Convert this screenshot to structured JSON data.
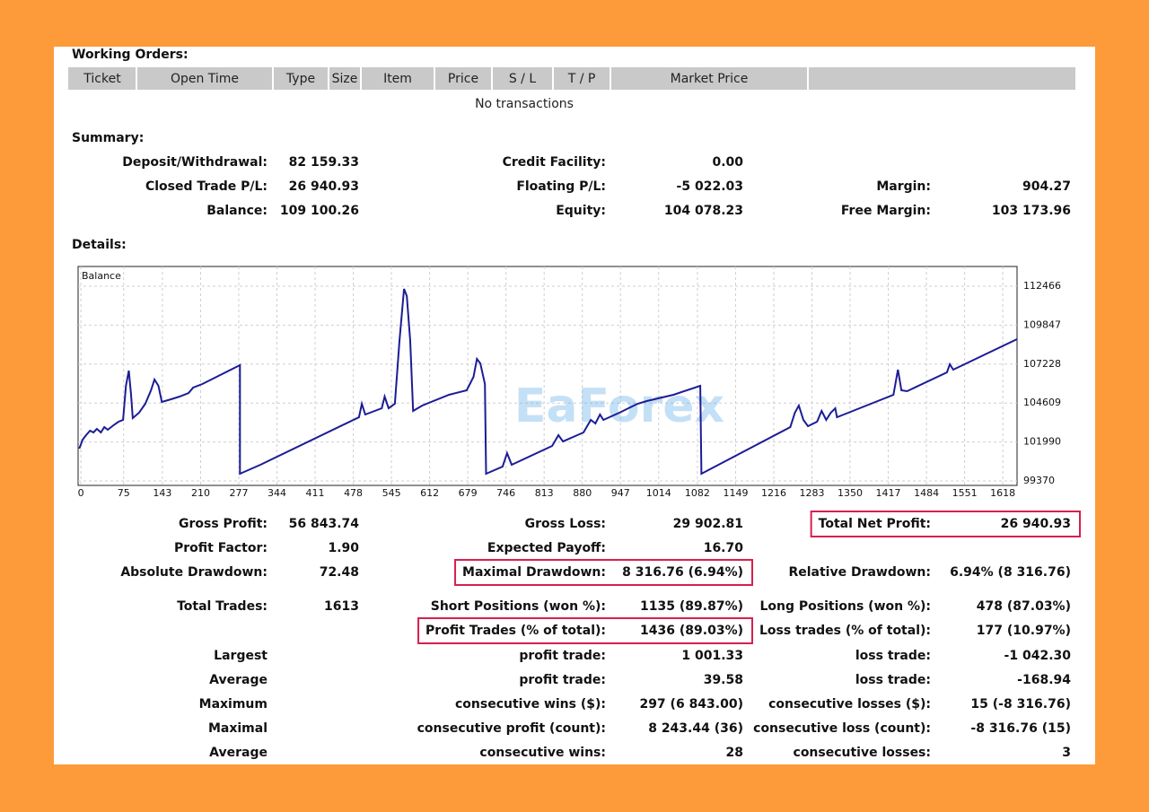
{
  "working_orders": {
    "title": "Working Orders:",
    "columns": [
      "Ticket",
      "Open Time",
      "Type",
      "Size",
      "Item",
      "Price",
      "S / L",
      "T / P",
      "Market Price"
    ],
    "empty_message": "No transactions"
  },
  "summary": {
    "title": "Summary:",
    "rows": [
      [
        {
          "label": "Deposit/Withdrawal:",
          "value": "82 159.33"
        },
        {
          "label": "Credit Facility:",
          "value": "0.00"
        }
      ],
      [
        {
          "label": "Closed Trade P/L:",
          "value": "26 940.93"
        },
        {
          "label": "Floating P/L:",
          "value": "-5 022.03"
        },
        {
          "label": "Margin:",
          "value": "904.27"
        }
      ],
      [
        {
          "label": "Balance:",
          "value": "109 100.26"
        },
        {
          "label": "Equity:",
          "value": "104 078.23"
        },
        {
          "label": "Free Margin:",
          "value": "103 173.96"
        }
      ]
    ]
  },
  "details": {
    "title": "Details:",
    "watermark": "EaForex"
  },
  "chart_data": {
    "type": "line",
    "grid": true,
    "xlim": [
      -5,
      1643
    ],
    "ylim": [
      99068,
      113794
    ],
    "xticks": [
      0,
      75,
      143,
      210,
      277,
      344,
      411,
      478,
      545,
      612,
      679,
      746,
      813,
      880,
      947,
      1014,
      1082,
      1149,
      1216,
      1283,
      1350,
      1417,
      1484,
      1551,
      1618
    ],
    "yticks": [
      99370,
      101990,
      104609,
      107228,
      109847,
      112466
    ],
    "series": [
      {
        "name": "Balance",
        "color": "#1c1c96",
        "x": [
          -3,
          3,
          9,
          16,
          22,
          28,
          35,
          41,
          47,
          57,
          66,
          74,
          79,
          84,
          88,
          91,
          102,
          113,
          123,
          129,
          136,
          142,
          158,
          173,
          189,
          197,
          213,
          279,
          279,
          315,
          488,
          493,
          499,
          528,
          533,
          540,
          551,
          559,
          567,
          572,
          578,
          583,
          599,
          646,
          677,
          689,
          695,
          701,
          709,
          711,
          740,
          748,
          756,
          827,
          838,
          846,
          882,
          895,
          903,
          911,
          917,
          945,
          961,
          977,
          993,
          1040,
          1087,
          1089,
          1245,
          1253,
          1260,
          1268,
          1276,
          1292,
          1300,
          1308,
          1316,
          1324,
          1327,
          1339,
          1426,
          1434,
          1440,
          1450,
          1520,
          1525,
          1531,
          1643
        ],
        "values": [
          101543,
          102146,
          102448,
          102750,
          102629,
          102870,
          102629,
          102991,
          102810,
          103112,
          103353,
          103474,
          105767,
          106793,
          105164,
          103595,
          103957,
          104560,
          105465,
          106190,
          105767,
          104681,
          104862,
          105043,
          105284,
          105646,
          105888,
          107155,
          99853,
          100456,
          103655,
          104560,
          103836,
          104258,
          105043,
          104258,
          104560,
          108785,
          112285,
          111802,
          108785,
          104077,
          104439,
          105164,
          105465,
          106371,
          107578,
          107276,
          105888,
          99853,
          100336,
          101241,
          100456,
          101724,
          102448,
          102025,
          102629,
          103474,
          103232,
          103836,
          103474,
          103957,
          104258,
          104560,
          104741,
          105164,
          105767,
          99853,
          102991,
          103957,
          104439,
          103474,
          103051,
          103353,
          104077,
          103474,
          103957,
          104258,
          103655,
          103836,
          105164,
          106853,
          105465,
          105405,
          106672,
          107216,
          106853,
          108905
        ]
      }
    ]
  },
  "stats": {
    "rows": [
      [
        {
          "label": "Gross Profit:",
          "value": "56 843.74"
        },
        {
          "label": "Gross Loss:",
          "value": "29 902.81"
        },
        {
          "label": "Total Net Profit:",
          "value": "26 940.93",
          "highlight": true
        }
      ],
      [
        {
          "label": "Profit Factor:",
          "value": "1.90"
        },
        {
          "label": "Expected Payoff:",
          "value": "16.70"
        }
      ],
      [
        {
          "label": "Absolute Drawdown:",
          "value": "72.48"
        },
        {
          "label": "Maximal Drawdown:",
          "value": "8 316.76 (6.94%)",
          "highlight": true
        },
        {
          "label": "Relative Drawdown:",
          "value": "6.94% (8 316.76)"
        }
      ],
      [
        {
          "label": "Total Trades:",
          "value": "1613"
        },
        {
          "label": "Short Positions (won %):",
          "value": "1135 (89.87%)"
        },
        {
          "label": "Long Positions (won %):",
          "value": "478 (87.03%)"
        }
      ],
      [
        {
          "label": "Profit Trades (% of total):",
          "value": "1436 (89.03%)",
          "highlight": true
        },
        {
          "label": "Loss trades (% of total):",
          "value": "177 (10.97%)"
        }
      ],
      [
        {
          "label": "Largest"
        },
        {
          "label": "profit trade:",
          "value": "1 001.33"
        },
        {
          "label": "loss trade:",
          "value": "-1 042.30"
        }
      ],
      [
        {
          "label": "Average"
        },
        {
          "label": "profit trade:",
          "value": "39.58"
        },
        {
          "label": "loss trade:",
          "value": "-168.94"
        }
      ],
      [
        {
          "label": "Maximum"
        },
        {
          "label": "consecutive wins ($):",
          "value": "297 (6 843.00)"
        },
        {
          "label": "consecutive losses ($):",
          "value": "15 (-8 316.76)"
        }
      ],
      [
        {
          "label": "Maximal"
        },
        {
          "label": "consecutive profit (count):",
          "value": "8 243.44 (36)"
        },
        {
          "label": "consecutive loss (count):",
          "value": "-8 316.76 (15)"
        }
      ],
      [
        {
          "label": "Average"
        },
        {
          "label": "consecutive wins:",
          "value": "28"
        },
        {
          "label": "consecutive losses:",
          "value": "3"
        }
      ]
    ]
  }
}
